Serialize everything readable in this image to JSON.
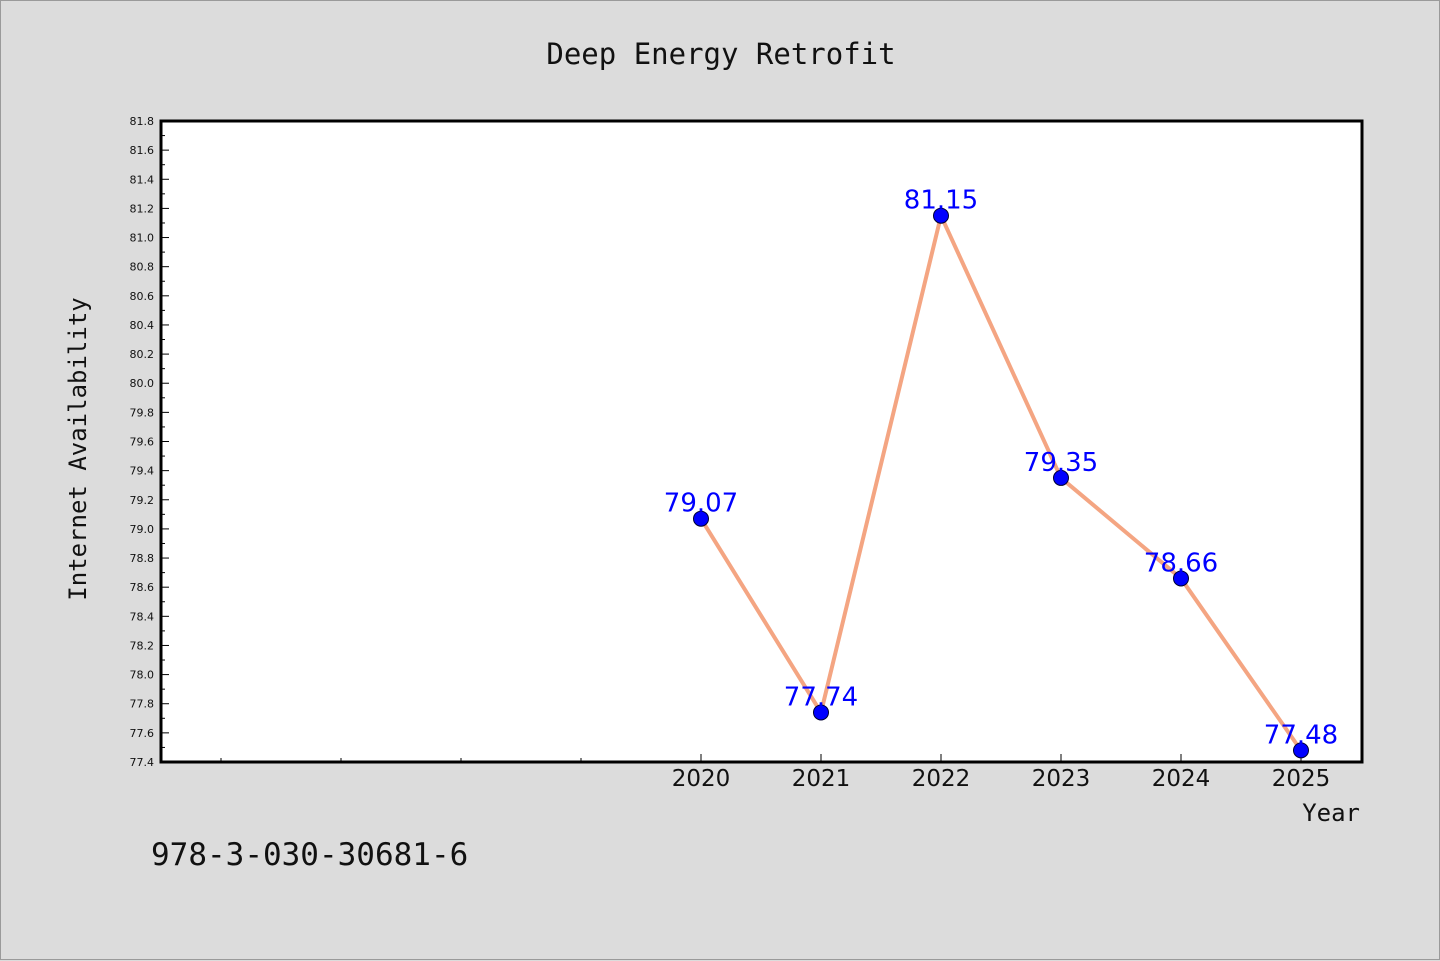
{
  "chart_data": {
    "type": "line",
    "title": "Deep Energy Retrofit",
    "xlabel": "Year",
    "ylabel": "Internet Availability",
    "x": [
      "2020",
      "2021",
      "2022",
      "2023",
      "2024",
      "2025"
    ],
    "series": [
      {
        "values": [
          79.07,
          77.74,
          81.15,
          79.35,
          78.66,
          77.48
        ]
      }
    ],
    "data_labels": [
      "79.07",
      "77.74",
      "81.15",
      "79.35",
      "78.66",
      "77.48"
    ],
    "ylim": [
      77.4,
      81.8
    ],
    "yticks": [
      "77.4",
      "77.6",
      "77.8",
      "78.0",
      "78.2",
      "78.4",
      "78.6",
      "78.8",
      "79.0",
      "79.2",
      "79.4",
      "79.6",
      "79.8",
      "80.0",
      "80.2",
      "80.4",
      "80.6",
      "80.8",
      "81.0",
      "81.2",
      "81.4",
      "81.6",
      "81.8"
    ],
    "grid": false,
    "legend": "none"
  },
  "footer_text": "978-3-030-30681-6",
  "colors": {
    "background": "#dcdcdc",
    "plot_background": "#ffffff",
    "line": "#f4a582",
    "marker": "#0000ff",
    "label": "#0000ff"
  }
}
